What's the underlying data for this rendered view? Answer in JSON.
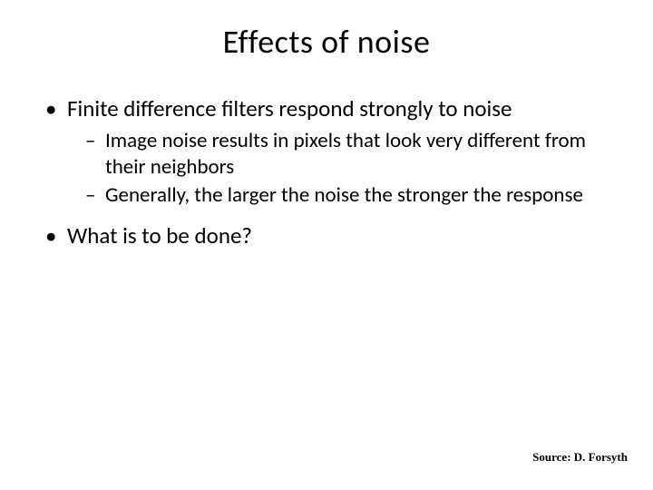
{
  "title": "Effects of noise",
  "bullets": {
    "b1": {
      "text": "Finite difference filters respond strongly to noise",
      "sub": {
        "s1": "Image noise results in pixels that look very different from their neighbors",
        "s2": "Generally, the larger the noise the stronger the response"
      }
    },
    "b2": {
      "text": "What is to be done?"
    }
  },
  "source": "Source: D. Forsyth",
  "style": {
    "background_color": "#ffffff",
    "text_color": "#000000",
    "title_fontsize": 36,
    "body_fontsize": 25,
    "sub_fontsize": 23,
    "source_fontsize": 13,
    "bullet_char": "•",
    "dash_char": "–"
  }
}
